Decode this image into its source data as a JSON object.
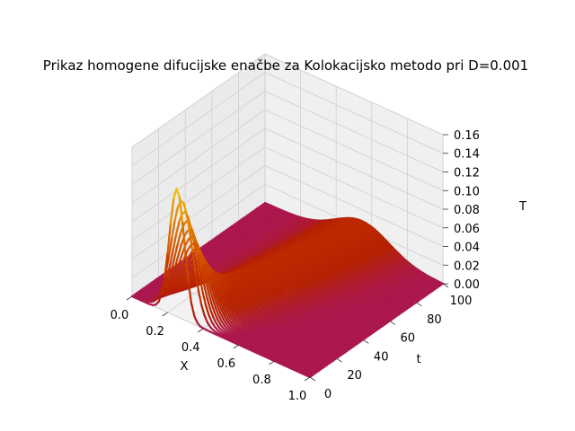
{
  "chart_data": {
    "type": "surface3d",
    "title": "Prikaz homogene difucijske enačbe za Kolokacijsko metodo pri D=0.001",
    "xlabel": "X",
    "ylabel": "t",
    "zlabel": "T",
    "xlim": [
      0.0,
      1.0
    ],
    "ylim": [
      0,
      100
    ],
    "zlim": [
      0.0,
      0.16
    ],
    "x_ticks": [
      "0.0",
      "0.2",
      "0.4",
      "0.6",
      "0.8",
      "1.0"
    ],
    "y_ticks": [
      "0",
      "20",
      "40",
      "60",
      "80",
      "100"
    ],
    "z_ticks": [
      "0.00",
      "0.02",
      "0.04",
      "0.06",
      "0.08",
      "0.10",
      "0.12",
      "0.14",
      "0.16"
    ],
    "colormap": "gnuplot",
    "surface": {
      "initial_peak_x": 0.25,
      "initial_peak_height": 0.155,
      "initial_peak_width": 0.06,
      "final_peak_x": 0.55,
      "final_peak_height": 0.028
    },
    "grid": true
  }
}
